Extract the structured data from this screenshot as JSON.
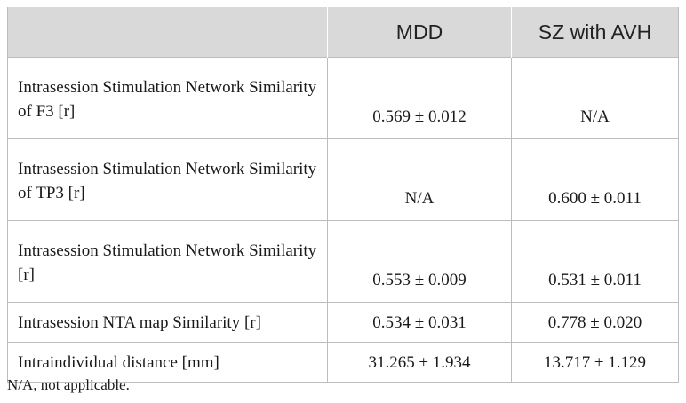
{
  "table": {
    "headers": [
      "",
      "MDD",
      "SZ with AVH"
    ],
    "rows": [
      {
        "label": "Intrasession Stimulation Network Similarity of F3 [r]",
        "mdd": "0.569 ± 0.012",
        "sz": "N/A"
      },
      {
        "label": "Intrasession Stimulation Network Similarity of TP3 [r]",
        "mdd": "N/A",
        "sz": "0.600 ± 0.011"
      },
      {
        "label": "Intrasession Stimulation Network Similarity [r]",
        "mdd": "0.553 ± 0.009",
        "sz": "0.531 ± 0.011"
      },
      {
        "label": "Intrasession NTA map Similarity [r]",
        "mdd": "0.534 ± 0.031",
        "sz": "0.778 ± 0.020"
      },
      {
        "label": "Intraindividual distance [mm]",
        "mdd": "31.265 ± 1.934",
        "sz": "13.717 ± 1.129"
      }
    ]
  },
  "footnote": "N/A, not applicable.",
  "colors": {
    "header_bg": "#d9d9d9",
    "border": "#bdbdbd"
  }
}
